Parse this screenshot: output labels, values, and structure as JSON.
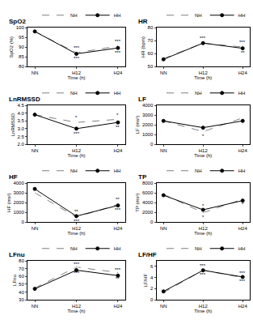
{
  "chart_data": [
    {
      "type": "line",
      "title": "SpO2",
      "x_label": "Time (h)",
      "y_label": "SpO2 (%)",
      "categories": [
        "NN",
        "H12",
        "H24"
      ],
      "series": [
        {
          "name": "NH",
          "color": "#7f7f7f",
          "line_style": "dash",
          "marker": "circle-open",
          "values": [
            98,
            87,
            90.5
          ]
        },
        {
          "name": "HH",
          "color": "#000000",
          "line_style": "solid",
          "marker": "circle",
          "values": [
            98,
            86.5,
            89.5
          ]
        }
      ],
      "ylim": [
        80,
        100
      ],
      "yticks": [
        80,
        85,
        90,
        95,
        100
      ],
      "annotations": [
        {
          "x": "H12",
          "y": 89.5,
          "text": "***"
        },
        {
          "x": "H12",
          "y": 84,
          "text": "***"
        },
        {
          "x": "H24",
          "y": 93,
          "text": "***"
        },
        {
          "x": "H24",
          "y": 87,
          "text": "***"
        }
      ]
    },
    {
      "type": "line",
      "title": "HR",
      "x_label": "Time (h)",
      "y_label": "HR (bpm)",
      "categories": [
        "NN",
        "H12",
        "H24"
      ],
      "series": [
        {
          "name": "NH",
          "color": "#7f7f7f",
          "line_style": "dash",
          "marker": "circle-open",
          "values": [
            56,
            68,
            65
          ]
        },
        {
          "name": "HH",
          "color": "#000000",
          "line_style": "solid",
          "marker": "circle",
          "values": [
            55.5,
            68,
            64
          ]
        }
      ],
      "ylim": [
        50,
        80
      ],
      "yticks": [
        50,
        60,
        70,
        80
      ],
      "annotations": [
        {
          "x": "H12",
          "y": 72,
          "text": "***"
        },
        {
          "x": "H24",
          "y": 68.5,
          "text": "***"
        },
        {
          "x": "H24",
          "y": 60.5,
          "text": "**"
        }
      ]
    },
    {
      "type": "line",
      "title": "LnRMSSD",
      "x_label": "Time (h)",
      "y_label": "LnRMSSD",
      "categories": [
        "NN",
        "H12",
        "H24"
      ],
      "series": [
        {
          "name": "NH",
          "color": "#7f7f7f",
          "line_style": "dash",
          "marker": "circle-open",
          "values": [
            3.9,
            3.4,
            3.6
          ]
        },
        {
          "name": "HH",
          "color": "#000000",
          "line_style": "solid",
          "marker": "circle",
          "values": [
            3.9,
            3.0,
            3.4
          ]
        }
      ],
      "ylim": [
        2,
        4.5
      ],
      "yticks": [
        {
          "value": 2,
          "label": "2.0"
        },
        2.5,
        {
          "value": 3,
          "label": "3.0"
        },
        3.5,
        {
          "value": 4,
          "label": "4.0"
        },
        4.5
      ],
      "annotations": [
        {
          "x": "H12",
          "y": 3.7,
          "text": "*"
        },
        {
          "x": "H12",
          "y": 2.7,
          "text": "***"
        },
        {
          "x": "H24",
          "y": 3.9,
          "text": "*"
        },
        {
          "x": "H24",
          "y": 3.1,
          "text": "**"
        }
      ]
    },
    {
      "type": "line",
      "title": "LF",
      "x_label": "Time (h)",
      "y_label": "LF (ms²)",
      "categories": [
        "NN",
        "H12",
        "H24"
      ],
      "series": [
        {
          "name": "NH",
          "color": "#7f7f7f",
          "line_style": "dash",
          "marker": "circle-open",
          "values": [
            2400,
            1300,
            2700
          ]
        },
        {
          "name": "HH",
          "color": "#000000",
          "line_style": "solid",
          "marker": "circle",
          "values": [
            2400,
            1700,
            2400
          ]
        }
      ],
      "ylim": [
        0,
        4000
      ],
      "yticks": [
        0,
        1000,
        2000,
        3000,
        4000
      ],
      "annotations": [
        {
          "x": "H12",
          "y": 850,
          "text": "*"
        }
      ]
    },
    {
      "type": "line",
      "title": "HF",
      "x_label": "Time (h)",
      "y_label": "HF (ms²)",
      "categories": [
        "NN",
        "H12",
        "H24"
      ],
      "series": [
        {
          "name": "NH",
          "color": "#7f7f7f",
          "line_style": "dash",
          "marker": "circle-open",
          "values": [
            3000,
            500,
            1800
          ]
        },
        {
          "name": "HH",
          "color": "#000000",
          "line_style": "solid",
          "marker": "circle",
          "values": [
            3400,
            600,
            1700
          ]
        }
      ],
      "ylim": [
        0,
        4000
      ],
      "yticks": [
        0,
        1000,
        2000,
        3000,
        4000
      ],
      "annotations": [
        {
          "x": "H12",
          "y": 1100,
          "text": "**"
        },
        {
          "x": "H12",
          "y": 100,
          "text": "***"
        },
        {
          "x": "H24",
          "y": 2300,
          "text": "**"
        },
        {
          "x": "H24",
          "y": 1250,
          "text": "***"
        }
      ]
    },
    {
      "type": "line",
      "title": "TP",
      "x_label": "Time (h)",
      "y_label": "TP (ms²)",
      "categories": [
        "NN",
        "H12",
        "H24"
      ],
      "series": [
        {
          "name": "NH",
          "color": "#7f7f7f",
          "line_style": "dash",
          "marker": "circle-open",
          "values": [
            5700,
            1900,
            4700
          ]
        },
        {
          "name": "HH",
          "color": "#000000",
          "line_style": "solid",
          "marker": "circle",
          "values": [
            5500,
            2500,
            4400
          ]
        }
      ],
      "ylim": [
        0,
        8000
      ],
      "yticks": [
        0,
        2000,
        4000,
        6000,
        8000
      ],
      "annotations": [
        {
          "x": "H12",
          "y": 3300,
          "text": "*"
        },
        {
          "x": "H12",
          "y": 1000,
          "text": "*"
        },
        {
          "x": "H24",
          "y": 3600,
          "text": "*"
        }
      ]
    },
    {
      "type": "line",
      "title": "LFnu",
      "x_label": "Time (h)",
      "y_label": "LFnu",
      "categories": [
        "NN",
        "H12",
        "H24"
      ],
      "series": [
        {
          "name": "NH",
          "color": "#7f7f7f",
          "line_style": "dash",
          "marker": "circle-open",
          "values": [
            45,
            72,
            65
          ]
        },
        {
          "name": "HH",
          "color": "#000000",
          "line_style": "solid",
          "marker": "circle",
          "values": [
            44,
            68,
            61
          ]
        }
      ],
      "ylim": [
        30,
        80
      ],
      "yticks": [
        30,
        40,
        50,
        60,
        70,
        80
      ],
      "annotations": [
        {
          "x": "H12",
          "y": 76,
          "text": "***"
        },
        {
          "x": "H12",
          "y": 64,
          "text": "***"
        },
        {
          "x": "H24",
          "y": 69,
          "text": "***"
        },
        {
          "x": "H24",
          "y": 57,
          "text": "**"
        }
      ]
    },
    {
      "type": "line",
      "title": "LF/HF",
      "x_label": "Time (h)",
      "y_label": "LF/HF",
      "categories": [
        "NN",
        "H12",
        "H24"
      ],
      "series": [
        {
          "name": "NH",
          "color": "#7f7f7f",
          "line_style": "dash",
          "marker": "circle-open",
          "values": [
            1.3,
            5.3,
            4.0
          ]
        },
        {
          "name": "HH",
          "color": "#000000",
          "line_style": "solid",
          "marker": "circle",
          "values": [
            1.5,
            5.3,
            4.1
          ]
        }
      ],
      "ylim": [
        0,
        7
      ],
      "yticks": [
        0,
        2,
        4,
        6
      ],
      "annotations": [
        {
          "x": "H12",
          "y": 6.1,
          "text": "***"
        },
        {
          "x": "H12",
          "y": 4.5,
          "text": "***"
        },
        {
          "x": "H24",
          "y": 4.8,
          "text": "***"
        },
        {
          "x": "H24",
          "y": 3.3,
          "text": "***"
        }
      ]
    }
  ]
}
